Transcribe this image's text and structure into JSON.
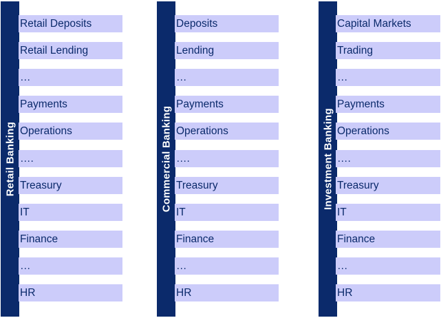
{
  "columns": [
    {
      "title": "Retail  Banking",
      "items": [
        "Retail Deposits",
        "Retail Lending",
        "…",
        "Payments",
        "Operations",
        "….",
        "Treasury",
        "IT",
        "Finance",
        "…",
        "HR"
      ]
    },
    {
      "title": "Commercial Banking",
      "items": [
        "Deposits",
        "Lending",
        "…",
        "Payments",
        "Operations",
        "….",
        "Treasury",
        "IT",
        "Finance",
        "…",
        "HR"
      ]
    },
    {
      "title": "Investment Banking",
      "items": [
        "Capital Markets",
        "Trading",
        "…",
        "Payments",
        "Operations",
        "….",
        "Treasury",
        "IT",
        "Finance",
        "…",
        "HR"
      ]
    }
  ],
  "colors": {
    "spine": "#0b2a6b",
    "item_bg": "#ccccfa",
    "item_text": "#0b2a6b"
  }
}
